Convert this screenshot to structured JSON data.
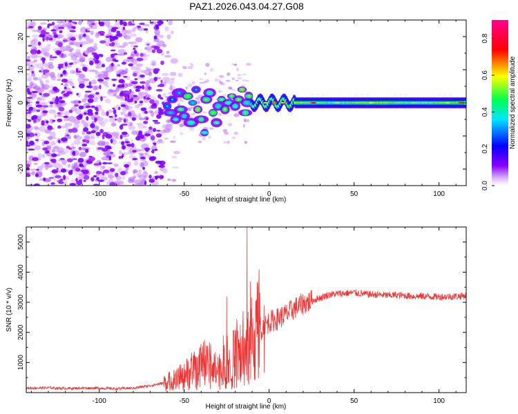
{
  "title": "PAZ1.2026.043.04.27.G08",
  "chart_data": [
    {
      "type": "heatmap",
      "name": "spectrogram",
      "xlabel": "Height of straight line (km)",
      "ylabel": "Frequency (Hz)",
      "xlim": [
        -143,
        116
      ],
      "ylim": [
        -25,
        25
      ],
      "xticks": [
        -100,
        -50,
        0,
        50,
        100
      ],
      "yticks": [
        -20,
        -10,
        0,
        10,
        20
      ],
      "xtick_labels": [
        "-100",
        "-50",
        "0",
        "50",
        "100"
      ],
      "ytick_labels": [
        "-20",
        "-10",
        "0",
        "10",
        "20"
      ],
      "colorbar": {
        "label": "Normalized spectral amplitude",
        "range": [
          0,
          0.9
        ],
        "ticks": [
          0.0,
          0.2,
          0.4,
          0.6,
          0.8
        ],
        "tick_labels": [
          "0.0",
          "0.2",
          "0.4",
          "0.6",
          "0.8"
        ],
        "colormap": [
          "#ffffff",
          "#8a00ff",
          "#0000ff",
          "#00e5ff",
          "#00ff4c",
          "#ffff00",
          "#ff0000",
          "#ff0090"
        ]
      },
      "description_points": {
        "noise_region_km": [
          -143,
          -62
        ],
        "transition_region_km": [
          -62,
          -10
        ],
        "tone_region_km": [
          -10,
          116
        ],
        "tone_frequency_hz": 0
      }
    },
    {
      "type": "line",
      "name": "snr",
      "xlabel": "Height of straight line (km)",
      "ylabel": "SNR (10 * v/v)",
      "xlim": [
        -143,
        116
      ],
      "ylim": [
        0,
        5500
      ],
      "xticks": [
        -100,
        -50,
        0,
        50,
        100
      ],
      "yticks": [
        1000,
        2000,
        3000,
        4000,
        5000
      ],
      "xtick_labels": [
        "-100",
        "-50",
        "0",
        "50",
        "100"
      ],
      "ytick_labels": [
        "1000",
        "2000",
        "3000",
        "4000",
        "5000"
      ],
      "color": "#ee3333",
      "x": [
        -143,
        -130,
        -120,
        -110,
        -100,
        -90,
        -80,
        -70,
        -65,
        -60,
        -55,
        -50,
        -45,
        -40,
        -35,
        -30,
        -25,
        -20,
        -15,
        -12,
        -10,
        -5,
        0,
        5,
        10,
        15,
        20,
        25,
        30,
        35,
        40,
        45,
        50,
        55,
        60,
        65,
        70,
        75,
        80,
        85,
        90,
        95,
        100,
        105,
        110,
        116
      ],
      "y": [
        150,
        160,
        140,
        150,
        150,
        130,
        150,
        230,
        290,
        350,
        420,
        560,
        700,
        820,
        900,
        780,
        950,
        1150,
        1250,
        1350,
        1600,
        2100,
        2350,
        2450,
        2600,
        2800,
        2950,
        3050,
        3150,
        3250,
        3280,
        3300,
        3320,
        3280,
        3260,
        3250,
        3230,
        3240,
        3220,
        3200,
        3200,
        3190,
        3180,
        3190,
        3200,
        3220
      ],
      "spikes": [
        {
          "x": -50,
          "y": 950
        },
        {
          "x": -38,
          "y": 1750
        },
        {
          "x": -27,
          "y": 1900
        },
        {
          "x": -25,
          "y": 3200
        },
        {
          "x": -17,
          "y": 2250
        },
        {
          "x": -13,
          "y": 5500
        },
        {
          "x": -11,
          "y": 3700
        },
        {
          "x": -3,
          "y": 2900
        }
      ]
    }
  ]
}
